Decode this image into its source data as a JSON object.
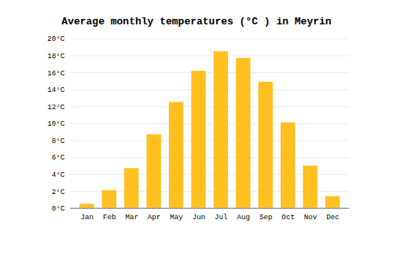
{
  "chart_data": {
    "type": "bar",
    "title": "Average monthly temperatures (°C ) in Meyrin",
    "categories": [
      "Jan",
      "Feb",
      "Mar",
      "Apr",
      "May",
      "Jun",
      "Jul",
      "Aug",
      "Sep",
      "Oct",
      "Nov",
      "Dec"
    ],
    "values": [
      0.5,
      2.1,
      4.7,
      8.7,
      12.5,
      16.2,
      18.5,
      17.7,
      14.9,
      10.1,
      5.0,
      1.4
    ],
    "color": "#FFC020",
    "ylim": [
      0,
      20
    ],
    "yticks": [
      {
        "value": 0,
        "label": "0°C"
      },
      {
        "value": 2,
        "label": "2°C"
      },
      {
        "value": 4,
        "label": "4°C"
      },
      {
        "value": 6,
        "label": "6°C"
      },
      {
        "value": 8,
        "label": "8°C"
      },
      {
        "value": 10,
        "label": "10°C"
      },
      {
        "value": 12,
        "label": "12°C"
      },
      {
        "value": 14,
        "label": "14°C"
      },
      {
        "value": 16,
        "label": "16°C"
      },
      {
        "value": 18,
        "label": "18°C"
      },
      {
        "value": 20,
        "label": "20°C"
      }
    ],
    "grid": true
  }
}
